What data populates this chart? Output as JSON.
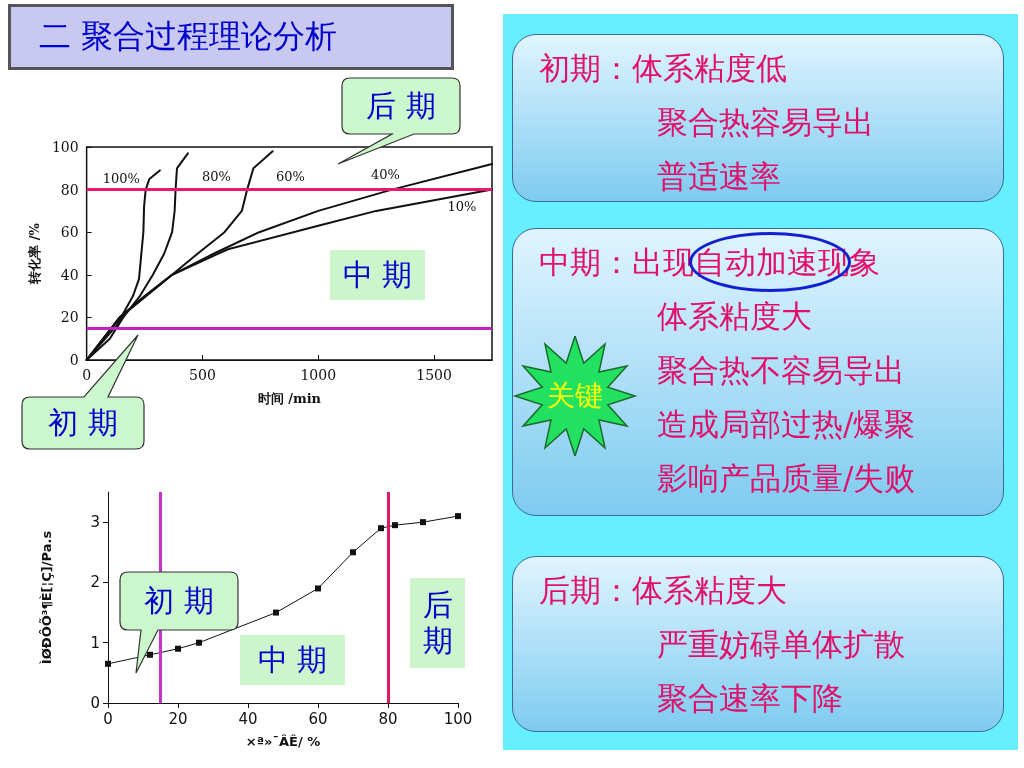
{
  "chart_data": [
    {
      "type": "other",
      "title": "二  聚合过程理论分析"
    },
    {
      "type": "line",
      "xlabel": "时间 /min",
      "ylabel": "转化率 /%",
      "xlim": [
        0,
        1750
      ],
      "xticks": [
        0,
        500,
        1000,
        1500
      ],
      "ylim": [
        0,
        100
      ],
      "yticks": [
        0,
        20,
        40,
        60,
        80,
        100
      ],
      "grid": false,
      "legend": false,
      "marker": "none",
      "line_style": "solid",
      "series": [
        {
          "name": "100%",
          "color": "#111111",
          "x": [
            0,
            128,
            200,
            226,
            245,
            248,
            255,
            271,
            316
          ],
          "values": [
            0,
            16,
            30,
            38,
            60,
            72,
            80,
            85,
            89
          ]
        },
        {
          "name": "80%",
          "color": "#111111",
          "x": [
            0,
            100,
            158,
            230,
            286,
            335,
            369,
            380,
            384,
            390,
            437
          ],
          "values": [
            0,
            10,
            20,
            30,
            40,
            50,
            60,
            70,
            80,
            90,
            97
          ]
        },
        {
          "name": "60%",
          "color": "#111111",
          "x": [
            0,
            143,
            250,
            369,
            480,
            595,
            670,
            693,
            720,
            803
          ],
          "values": [
            0,
            20,
            30,
            40,
            50,
            60,
            70,
            80,
            90,
            98
          ]
        },
        {
          "name": "40%",
          "color": "#111111",
          "x": [
            0,
            143,
            369,
            550,
            745,
            1000,
            1318,
            1750
          ],
          "values": [
            0,
            20,
            40,
            50,
            60,
            70,
            80,
            92
          ]
        },
        {
          "name": "10%",
          "color": "#111111",
          "x": [
            0,
            143,
            369,
            610,
            1000,
            1250,
            1500,
            1750
          ],
          "values": [
            0,
            20,
            40,
            52,
            63,
            70,
            75,
            80
          ]
        }
      ],
      "ref_lines": [
        {
          "axis": "y",
          "value": 80,
          "color": "#e8186e"
        },
        {
          "axis": "y",
          "value": 15,
          "color": "#c81ec8"
        }
      ],
      "annotations": [
        "后 期",
        "中 期",
        "初 期"
      ]
    },
    {
      "type": "line",
      "xlabel": "×ª»¯ÂÊ/ %",
      "ylabel": "ÌØÐÔÕ³¶È[¦Ç]/Pa.s",
      "xlim": [
        0,
        100
      ],
      "xticks": [
        0,
        20,
        40,
        60,
        80,
        100
      ],
      "ylim": [
        0,
        3.5
      ],
      "yticks": [
        0,
        1,
        2,
        3
      ],
      "grid": false,
      "legend": false,
      "marker": "square",
      "line_style": "solid",
      "x": [
        0,
        12,
        20,
        26,
        48,
        60,
        70,
        78,
        82,
        90,
        100
      ],
      "series": [
        {
          "color": "#111111",
          "values": [
            0.65,
            0.8,
            0.9,
            1.0,
            1.5,
            1.9,
            2.5,
            2.9,
            2.95,
            3.0,
            3.1
          ]
        }
      ],
      "ref_lines": [
        {
          "axis": "x",
          "value": 15,
          "color": "#c832c8"
        },
        {
          "axis": "x",
          "value": 80,
          "color": "#e0186a"
        }
      ],
      "annotations": [
        "初 期",
        "中 期",
        "后期"
      ]
    },
    {
      "type": "other",
      "annotations": [
        "初期：体系粘度低",
        "聚合热容易导出",
        "普适速率"
      ]
    },
    {
      "type": "other",
      "annotations": [
        "中期：出现自动加速现象",
        "体系粘度大",
        "聚合热不容易导出",
        "造成局部过热/爆聚",
        "影响产品质量/失败"
      ]
    },
    {
      "type": "other",
      "annotations": [
        "后期：体系粘度大",
        "严重妨碍单体扩散",
        "聚合速率下降"
      ]
    },
    {
      "type": "other",
      "annotations": [
        "关键"
      ]
    }
  ]
}
